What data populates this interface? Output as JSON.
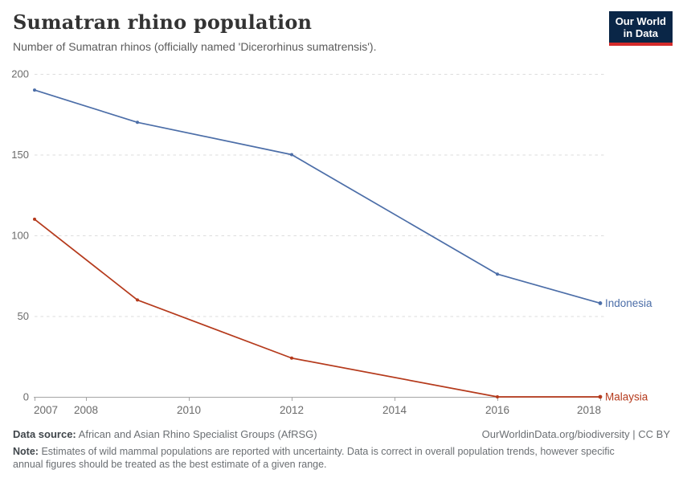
{
  "header": {
    "title": "Sumatran rhino population",
    "subtitle": "Number of Sumatran rhinos (officially named 'Dicerorhinus sumatrensis').",
    "logo": {
      "line1": "Our World",
      "line2": "in Data",
      "bg_color": "#0a2647",
      "underline_color": "#d42b2b"
    }
  },
  "chart_data": {
    "type": "line",
    "title": "Sumatran rhino population",
    "subtitle": "Number of Sumatran rhinos (officially named 'Dicerorhinus sumatrensis').",
    "x": [
      2007,
      2009,
      2012,
      2016,
      2018
    ],
    "series": [
      {
        "name": "Indonesia",
        "color": "#4c6ea8",
        "values": [
          190,
          170,
          150,
          76,
          58
        ]
      },
      {
        "name": "Malaysia",
        "color": "#b53a1c",
        "values": [
          110,
          60,
          24,
          0,
          0
        ]
      }
    ],
    "xlabel": "",
    "ylabel": "",
    "xlim": [
      2007,
      2018
    ],
    "ylim": [
      0,
      200
    ],
    "xticks": [
      2007,
      2008,
      2010,
      2012,
      2014,
      2016,
      2018
    ],
    "yticks": [
      0,
      50,
      100,
      150,
      200
    ],
    "grid": "horizontal-dashed",
    "markers": true,
    "legend": "end-of-line labels",
    "axis_color": "#a5a5a5",
    "grid_color": "#dddddd",
    "tick_label_color": "#6b6b6b"
  },
  "footer": {
    "data_source_label": "Data source:",
    "data_source": "African and Asian Rhino Specialist Groups (AfRSG)",
    "attribution": "OurWorldinData.org/biodiversity | CC BY",
    "note_label": "Note:",
    "note": "Estimates of wild mammal populations are reported with uncertainty. Data is correct in overall population trends, however specific annual figures should be treated as the best estimate of a given range."
  }
}
